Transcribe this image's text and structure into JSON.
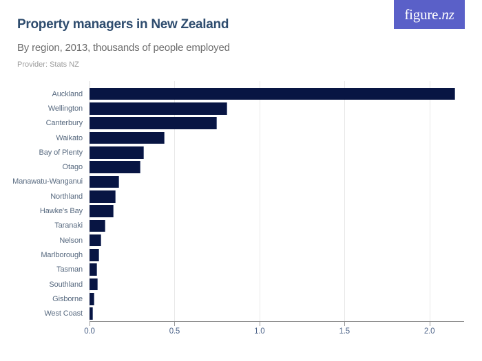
{
  "header": {
    "title": "Property managers in New Zealand",
    "subtitle": "By region, 2013, thousands of people employed",
    "provider": "Provider: Stats NZ",
    "logo_text_main": "figure.",
    "logo_text_suffix": "nz",
    "logo_bg": "#5a60c8",
    "title_color": "#2e4c6e"
  },
  "chart_data": {
    "type": "bar",
    "orientation": "horizontal",
    "title": "Property managers in New Zealand",
    "subtitle": "By region, 2013, thousands of people employed",
    "unit": "thousands of people employed",
    "year": "2013",
    "categories": [
      "Auckland",
      "Wellington",
      "Canterbury",
      "Waikato",
      "Bay of Plenty",
      "Otago",
      "Manawatu-Wanganui",
      "Northland",
      "Hawke's Bay",
      "Taranaki",
      "Nelson",
      "Marlborough",
      "Tasman",
      "Southland",
      "Gisborne",
      "West Coast"
    ],
    "values": [
      2.15,
      0.81,
      0.75,
      0.44,
      0.32,
      0.3,
      0.175,
      0.155,
      0.14,
      0.095,
      0.07,
      0.055,
      0.045,
      0.047,
      0.03,
      0.02
    ],
    "x_ticks": [
      {
        "value": 0,
        "label": "0.0"
      },
      {
        "value": 0.5,
        "label": "0.5"
      },
      {
        "value": 1,
        "label": "1.0"
      },
      {
        "value": 1.5,
        "label": "1.5"
      },
      {
        "value": 2,
        "label": "2.0"
      }
    ],
    "xlim": [
      0,
      2.2
    ],
    "xlabel": "",
    "ylabel": "",
    "grid": true,
    "bar_color": "#081543",
    "gridline_color": "#e8e8e8",
    "axis_color": "#8c8c8c"
  }
}
